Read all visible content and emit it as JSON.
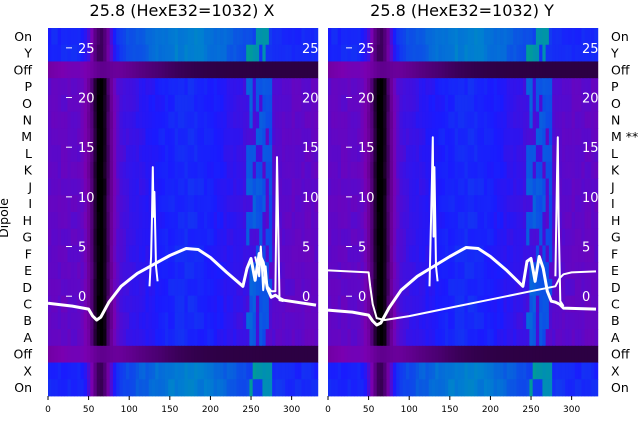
{
  "chart_data": [
    {
      "type": "heatmap",
      "title": "25.8 (HexE32=1032) X",
      "ylabel": "Dipole",
      "row_labels": [
        "On",
        "Y",
        "Off",
        "P",
        "O",
        "N",
        "M",
        "L",
        "K",
        "J",
        "I",
        "H",
        "G",
        "F",
        "E",
        "D",
        "C",
        "B",
        "A",
        "Off",
        "X",
        "On"
      ],
      "x_ticks": [
        0,
        50,
        100,
        150,
        200,
        250,
        300
      ],
      "xlim": [
        0,
        330
      ],
      "overlay_ticks": [
        0,
        5,
        10,
        15,
        20,
        25
      ],
      "overlay_ylim": [
        -3,
        27
      ],
      "colormap": [
        "#000000",
        "#4a0070",
        "#7a00b0",
        "#1a1aff",
        "#0080d0",
        "#00b070"
      ],
      "lines": [
        {
          "x": [
            0,
            30,
            50,
            55,
            60,
            65,
            75,
            90,
            110,
            130,
            150,
            170,
            185,
            200,
            220,
            240,
            245,
            250,
            255,
            260,
            265,
            270,
            275,
            280,
            285,
            290,
            330
          ],
          "y": [
            -0.7,
            -1,
            -1.3,
            -2,
            -2.4,
            -2.1,
            -0.6,
            1,
            2.3,
            3.2,
            4.1,
            4.8,
            4.7,
            3.9,
            2.4,
            1,
            2.8,
            3.8,
            1.6,
            4.3,
            3.4,
            0.8,
            -0.1,
            0.1,
            -0.2,
            -0.4,
            -0.9
          ]
        },
        {
          "x": [
            125,
            127,
            128,
            129,
            130,
            131,
            133,
            135
          ],
          "y": [
            1,
            4,
            8,
            13,
            8,
            10.5,
            3,
            1.5
          ]
        },
        {
          "x": [
            255,
            258,
            260,
            262,
            265,
            268,
            270,
            275,
            280,
            282,
            285,
            290
          ],
          "y": [
            4,
            3,
            2,
            5,
            0.6,
            3,
            1,
            0.5,
            0.5,
            14,
            -0.4,
            -0.5
          ]
        }
      ]
    },
    {
      "type": "heatmap",
      "title": "25.8 (HexE32=1032) Y",
      "row_labels": [
        "On",
        "Y",
        "Off",
        "P",
        "O",
        "N",
        "M **",
        "L",
        "K",
        "J",
        "I",
        "H",
        "G",
        "F",
        "E",
        "D",
        "C",
        "B",
        "A",
        "Off",
        "X",
        "On"
      ],
      "x_ticks": [
        0,
        50,
        100,
        150,
        200,
        250,
        300
      ],
      "xlim": [
        0,
        330
      ],
      "overlay_ticks": [
        0,
        5,
        10,
        15,
        20,
        25
      ],
      "overlay_ylim": [
        -3,
        27
      ],
      "colormap": [
        "#000000",
        "#4a0070",
        "#7a00b0",
        "#1a1aff",
        "#0080d0",
        "#00b070"
      ],
      "lines": [
        {
          "x": [
            0,
            30,
            50,
            55,
            60,
            65,
            75,
            90,
            110,
            130,
            150,
            170,
            185,
            200,
            220,
            240,
            245,
            250,
            255,
            260,
            265,
            270,
            275,
            280,
            285,
            290,
            330
          ],
          "y": [
            -1.4,
            -1.6,
            -1.9,
            -2.5,
            -2.9,
            -2.7,
            -1.2,
            0.6,
            2,
            3,
            4,
            4.9,
            4.8,
            4,
            2.6,
            1,
            3.5,
            3.8,
            1.5,
            4,
            2.8,
            0.5,
            -0.5,
            -0.6,
            -0.8,
            -1.2,
            -1.3
          ]
        },
        {
          "x": [
            0,
            50,
            52,
            55,
            60,
            70,
            100,
            130,
            160,
            190,
            220,
            250,
            280,
            285,
            290,
            300,
            330
          ],
          "y": [
            2.6,
            2.4,
            1,
            -0.8,
            -2.2,
            -2.4,
            -2,
            -1.5,
            -1,
            -0.5,
            0,
            0.5,
            1,
            1.8,
            2.2,
            2.4,
            2.5
          ]
        },
        {
          "x": [
            125,
            127,
            128,
            129,
            130,
            131,
            133,
            135
          ],
          "y": [
            1,
            8,
            12,
            16,
            6,
            13,
            3,
            1.5
          ]
        },
        {
          "x": [
            280,
            282,
            283,
            284,
            286,
            290
          ],
          "y": [
            2,
            12,
            16,
            8,
            -0.5,
            -1
          ]
        }
      ]
    }
  ]
}
